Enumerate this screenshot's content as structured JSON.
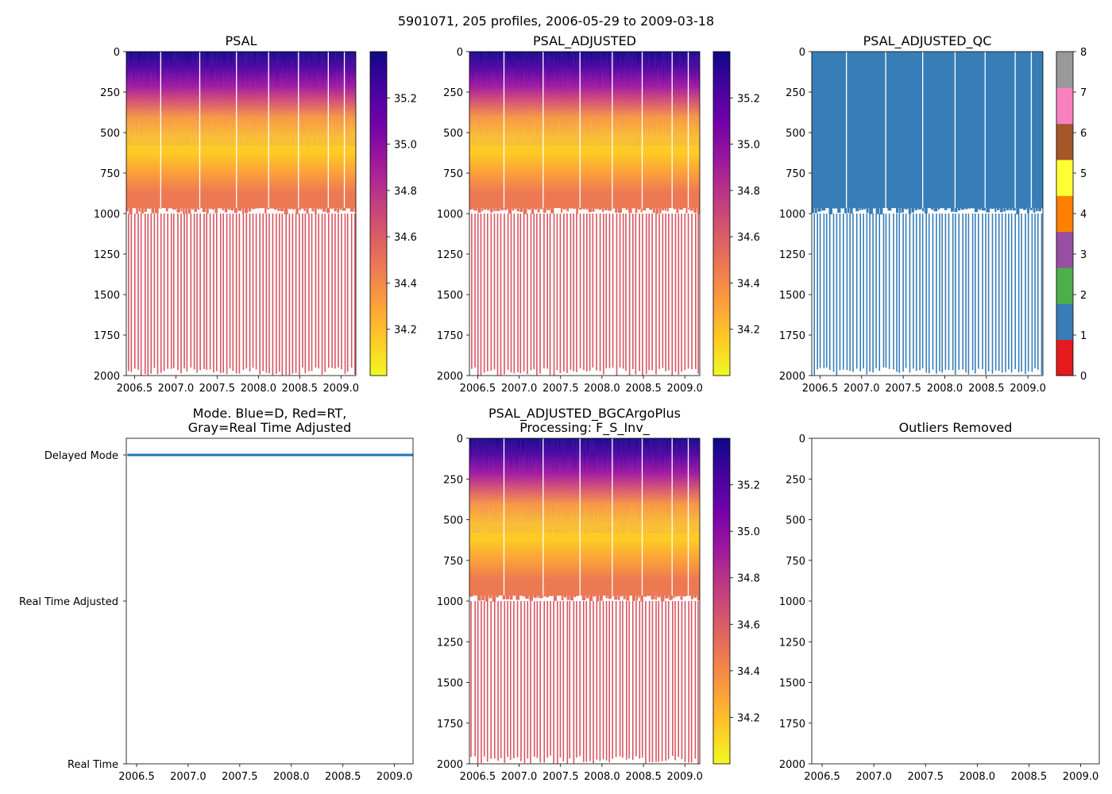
{
  "suptitle": "5901071, 205 profiles, 2006-05-29 to 2009-03-18",
  "colors": {
    "psal_gradient": [
      "#f0f921",
      "#fdca26",
      "#fb9f3a",
      "#ed7953",
      "#d8576b",
      "#bd3786",
      "#9c179e",
      "#7201a8",
      "#46039f",
      "#0d0887"
    ],
    "qc_palette": [
      "#e41a1c",
      "#377eb8",
      "#4daf4a",
      "#984ea3",
      "#ff7f00",
      "#ffff33",
      "#a65628",
      "#f781bf",
      "#999999"
    ],
    "mode_line": "#1f77b4",
    "deep_profile": "#d95560",
    "qc_good": "#377eb8"
  },
  "chart_data": [
    {
      "id": "psal",
      "type": "heatmap",
      "title": "PSAL",
      "xlim": [
        2006.4,
        2009.18
      ],
      "xticks": [
        "2006.5",
        "2007.0",
        "2007.5",
        "2008.0",
        "2008.5",
        "2009.0"
      ],
      "ylim": [
        2000,
        0
      ],
      "yticks": [
        "0",
        "250",
        "500",
        "750",
        "1000",
        "1250",
        "1500",
        "1750",
        "2000"
      ],
      "colorbar": {
        "range": [
          34.0,
          35.4
        ],
        "ticks": [
          "34.2",
          "34.4",
          "34.6",
          "34.8",
          "35.0",
          "35.2"
        ]
      }
    },
    {
      "id": "psal_adjusted",
      "type": "heatmap",
      "title": "PSAL_ADJUSTED",
      "xlim": [
        2006.4,
        2009.18
      ],
      "xticks": [
        "2006.5",
        "2007.0",
        "2007.5",
        "2008.0",
        "2008.5",
        "2009.0"
      ],
      "ylim": [
        2000,
        0
      ],
      "yticks": [
        "0",
        "250",
        "500",
        "750",
        "1000",
        "1250",
        "1500",
        "1750",
        "2000"
      ],
      "colorbar": {
        "range": [
          34.0,
          35.4
        ],
        "ticks": [
          "34.2",
          "34.4",
          "34.6",
          "34.8",
          "35.0",
          "35.2"
        ]
      }
    },
    {
      "id": "psal_adjusted_qc",
      "type": "heatmap",
      "title": "PSAL_ADJUSTED_QC",
      "xlim": [
        2006.4,
        2009.18
      ],
      "xticks": [
        "2006.5",
        "2007.0",
        "2007.5",
        "2008.0",
        "2008.5",
        "2009.0"
      ],
      "ylim": [
        2000,
        0
      ],
      "yticks": [
        "0",
        "250",
        "500",
        "750",
        "1000",
        "1250",
        "1500",
        "1750",
        "2000"
      ],
      "colorbar": {
        "range": [
          0,
          8
        ],
        "ticks": [
          "0",
          "1",
          "2",
          "3",
          "4",
          "5",
          "6",
          "7",
          "8"
        ]
      },
      "qc_value_shown": 1
    },
    {
      "id": "mode",
      "type": "line",
      "title_lines": [
        "Mode. Blue=D, Red=RT,",
        "Gray=Real Time Adjusted"
      ],
      "xlim": [
        2006.4,
        2009.18
      ],
      "xticks": [
        "2006.5",
        "2007.0",
        "2007.5",
        "2008.0",
        "2008.5",
        "2009.0"
      ],
      "yticks": [
        "Real Time",
        "Real Time Adjusted",
        "Delayed Mode"
      ],
      "series": [
        {
          "name": "D",
          "x": [
            2006.41,
            2009.18
          ],
          "values": [
            2,
            2
          ]
        }
      ]
    },
    {
      "id": "bgcargoplus",
      "type": "heatmap",
      "title_lines": [
        "PSAL_ADJUSTED_BGCArgoPlus",
        "Processing: F_S_Inv_"
      ],
      "xlim": [
        2006.4,
        2009.18
      ],
      "xticks": [
        "2006.5",
        "2007.0",
        "2007.5",
        "2008.0",
        "2008.5",
        "2009.0"
      ],
      "ylim": [
        2000,
        0
      ],
      "yticks": [
        "0",
        "250",
        "500",
        "750",
        "1000",
        "1250",
        "1500",
        "1750",
        "2000"
      ],
      "colorbar": {
        "range": [
          34.0,
          35.4
        ],
        "ticks": [
          "34.2",
          "34.4",
          "34.6",
          "34.8",
          "35.0",
          "35.2"
        ]
      }
    },
    {
      "id": "outliers",
      "type": "scatter",
      "title": "Outliers Removed",
      "xlim": [
        2006.4,
        2009.18
      ],
      "xticks": [
        "2006.5",
        "2007.0",
        "2007.5",
        "2008.0",
        "2008.5",
        "2009.0"
      ],
      "ylim": [
        2000,
        0
      ],
      "yticks": [
        "0",
        "250",
        "500",
        "750",
        "1000",
        "1250",
        "1500",
        "1750",
        "2000"
      ],
      "points": []
    }
  ]
}
